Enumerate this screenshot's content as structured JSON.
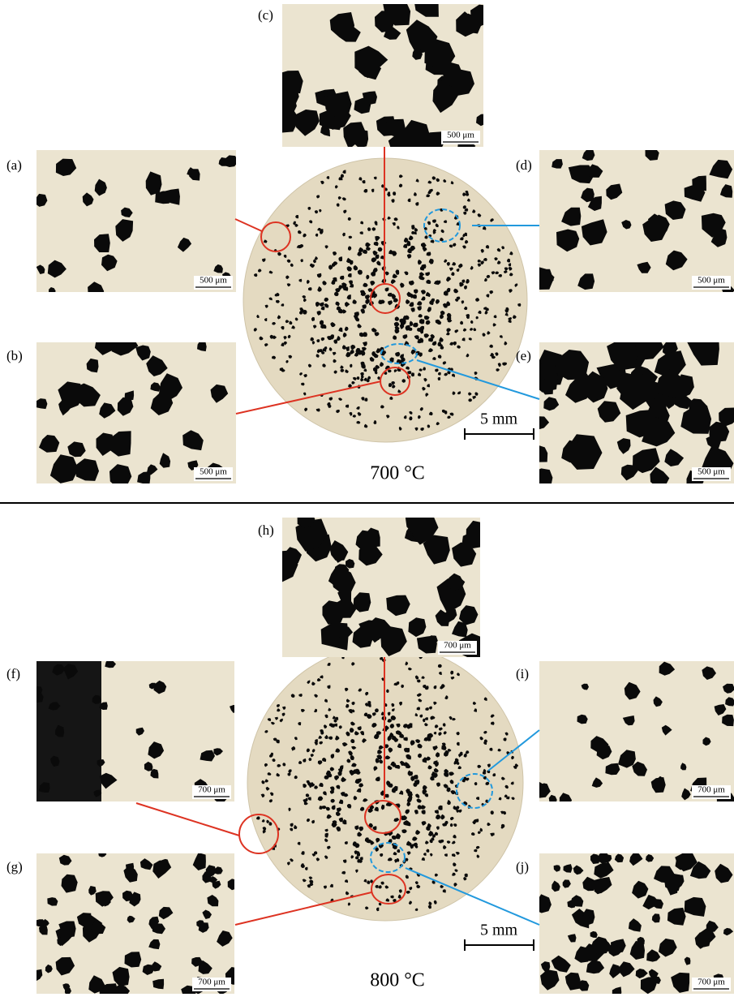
{
  "sections": [
    {
      "temperature": "700 °C",
      "scale_bar": "5 mm",
      "panels": [
        {
          "tag": "(a)",
          "scale": "500 μm"
        },
        {
          "tag": "(b)",
          "scale": "500 μm"
        },
        {
          "tag": "(c)",
          "scale": "500 μm"
        },
        {
          "tag": "(d)",
          "scale": "500 μm"
        },
        {
          "tag": "(e)",
          "scale": "500 μm"
        }
      ]
    },
    {
      "temperature": "800 °C",
      "scale_bar": "5 mm",
      "panels": [
        {
          "tag": "(f)",
          "scale": "700 μm"
        },
        {
          "tag": "(g)",
          "scale": "700 μm"
        },
        {
          "tag": "(h)",
          "scale": "700 μm"
        },
        {
          "tag": "(i)",
          "scale": "700 μm"
        },
        {
          "tag": "(j)",
          "scale": "700 μm"
        }
      ]
    }
  ]
}
